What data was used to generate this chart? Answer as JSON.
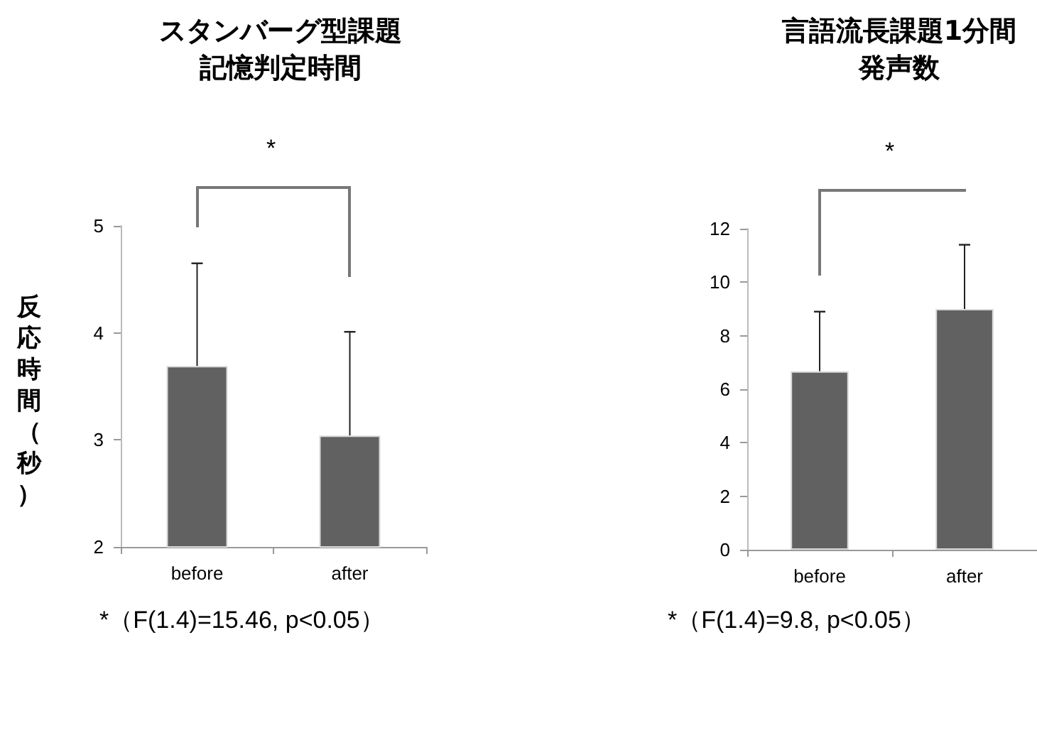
{
  "chart_data": [
    {
      "type": "bar",
      "title": "スタンバーグ型課題記憶判定時間",
      "ylabel": "反応時間（秒）",
      "categories": [
        "before",
        "after"
      ],
      "series": [
        {
          "color": "#616161",
          "values": [
            3.69,
            3.04
          ],
          "errors": [
            [
              3.69,
              4.65
            ],
            [
              3.04,
              4.01
            ]
          ]
        }
      ],
      "ylim": [
        2,
        5
      ],
      "yticks": [
        2,
        3,
        4,
        5
      ],
      "grid": false,
      "annotations": [
        "*",
        "*（F(1.4)=15.46, p<0.05）"
      ]
    },
    {
      "type": "bar",
      "title": "言語流長課題1分間発声数",
      "categories": [
        "before",
        "after"
      ],
      "series": [
        {
          "color": "#616161",
          "values": [
            6.67,
            9.0
          ],
          "errors": [
            [
              6.67,
              8.9
            ],
            [
              9.0,
              11.4
            ]
          ]
        }
      ],
      "ylim": [
        0,
        12
      ],
      "yticks": [
        0,
        2,
        4,
        6,
        8,
        10,
        12
      ],
      "grid": false,
      "annotations": [
        "*",
        "*（F(1.4)=9.8, p<0.05）"
      ]
    }
  ]
}
